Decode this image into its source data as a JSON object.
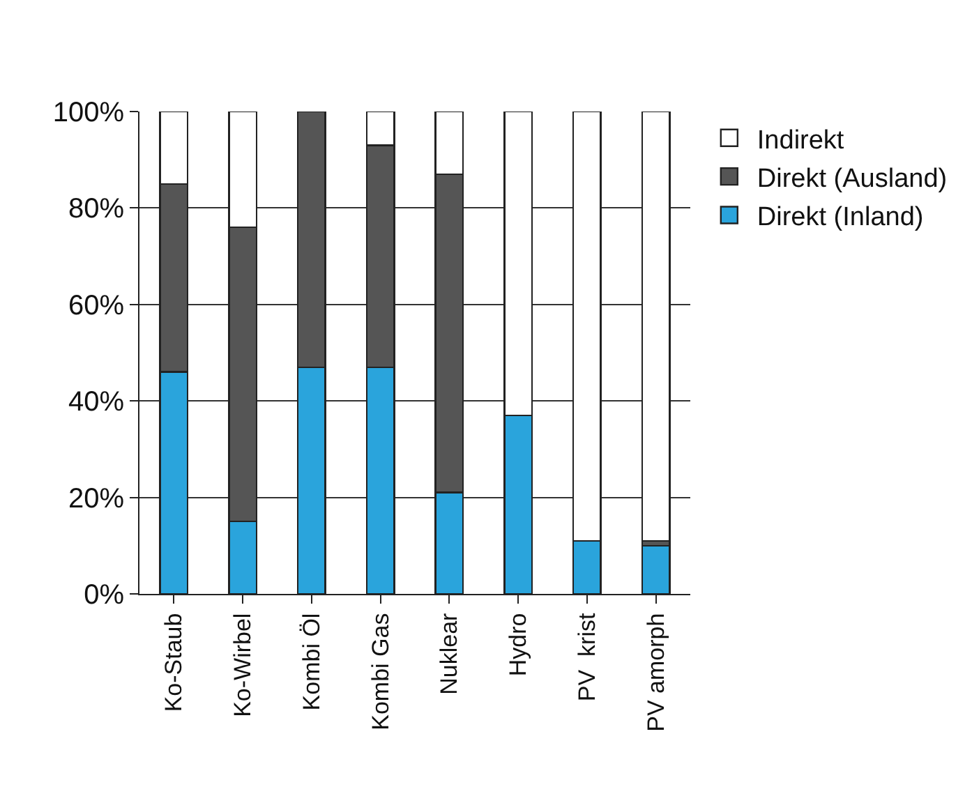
{
  "chart_data": {
    "type": "bar",
    "stacked": true,
    "categories": [
      "Ko-Staub",
      "Ko-Wirbel",
      "Kombi Öl",
      "Kombi Gas",
      "Nuklear",
      "Hydro",
      "PV  krist",
      "PV amorph"
    ],
    "series": [
      {
        "name": "Direkt (Inland)",
        "color": "#2aa4dc",
        "values": [
          46,
          15,
          47,
          47,
          21,
          37,
          11,
          10
        ]
      },
      {
        "name": "Direkt (Ausland)",
        "color": "#555555",
        "values": [
          39,
          61,
          53,
          46,
          66,
          null,
          null,
          1
        ]
      },
      {
        "name": "Indirekt",
        "color": "#ffffff",
        "values": [
          15,
          24,
          null,
          7,
          13,
          63,
          89,
          89
        ]
      }
    ],
    "ylim": [
      0,
      100
    ],
    "yticks": [
      {
        "value": 0,
        "label": "0%"
      },
      {
        "value": 20,
        "label": "20%"
      },
      {
        "value": 40,
        "label": "40%"
      },
      {
        "value": 60,
        "label": "60%"
      },
      {
        "value": 80,
        "label": "80%"
      },
      {
        "value": 100,
        "label": "100%"
      }
    ],
    "grid": "y",
    "legend": "right"
  }
}
